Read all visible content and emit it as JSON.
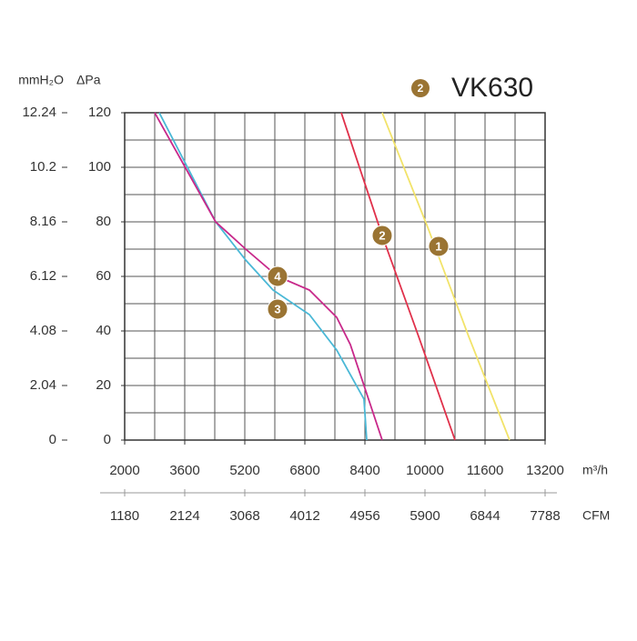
{
  "chart_data": {
    "type": "line",
    "title": "VK630",
    "title_badge": "2",
    "y_label": "ΔPa",
    "y2_label": "mmH₂O",
    "x_label": "m³/h",
    "x2_label": "CFM",
    "xlim": [
      2000,
      13200
    ],
    "xticks": [
      2000,
      3600,
      5200,
      6800,
      8400,
      10000,
      11600,
      13200
    ],
    "x2lim": [
      1180,
      7788
    ],
    "x2ticks": [
      1180,
      2124,
      3068,
      4012,
      4956,
      5900,
      6844,
      7788
    ],
    "ylim": [
      0,
      120
    ],
    "yticks": [
      0,
      20,
      40,
      60,
      80,
      100,
      120
    ],
    "y2lim": [
      0,
      12.24
    ],
    "y2ticks": [
      0,
      2.04,
      4.08,
      6.12,
      8.16,
      10.2,
      12.24
    ],
    "grid": true,
    "series": [
      {
        "name": "1",
        "color": "#f2e36a",
        "x": [
          8860,
          10073,
          11164,
          12254
        ],
        "values": [
          120,
          78,
          38,
          0
        ],
        "label_x": 10364,
        "label_y": 71
      },
      {
        "name": "2",
        "color": "#e0304a",
        "x": [
          7770,
          8860,
          9830,
          10800
        ],
        "values": [
          120,
          75,
          38,
          0
        ],
        "label_x": 8860,
        "label_y": 75
      },
      {
        "name": "3",
        "color": "#4ab8d6",
        "x": [
          2921,
          4424,
          5224,
          5952,
          6921,
          7648,
          8375,
          8448
        ],
        "values": [
          120,
          80,
          66,
          55,
          46,
          33,
          15,
          0
        ],
        "label_x": 6073,
        "label_y": 48
      },
      {
        "name": "4",
        "color": "#c8288a",
        "x": [
          2800,
          4424,
          5224,
          6073,
          6921,
          7648,
          8012,
          8860
        ],
        "values": [
          120,
          80,
          70,
          60,
          55,
          45,
          35,
          0
        ],
        "label_x": 6073,
        "label_y": 60
      }
    ]
  }
}
